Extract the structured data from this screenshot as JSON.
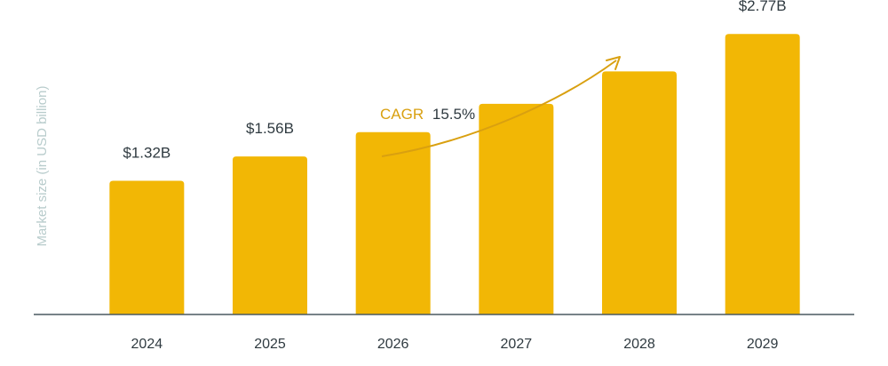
{
  "chart_data": {
    "type": "bar",
    "categories": [
      "2024",
      "2025",
      "2026",
      "2027",
      "2028",
      "2029"
    ],
    "values": [
      1.32,
      1.56,
      1.8,
      2.08,
      2.4,
      2.77
    ],
    "data_labels": [
      "$1.32B",
      "$1.56B",
      "",
      "",
      "",
      "$2.77B"
    ],
    "ylabel": "Market size (in USD billion)",
    "xlabel": "",
    "ylim": [
      0,
      3
    ],
    "grid": false,
    "annotation": {
      "label": "CAGR",
      "value": "15.5%"
    }
  },
  "colors": {
    "bar": "#F2B705",
    "baseline": "#4a5860",
    "annotation": "#D9A010",
    "text": "#2f3a40",
    "axis_title": "#b8cccc"
  }
}
